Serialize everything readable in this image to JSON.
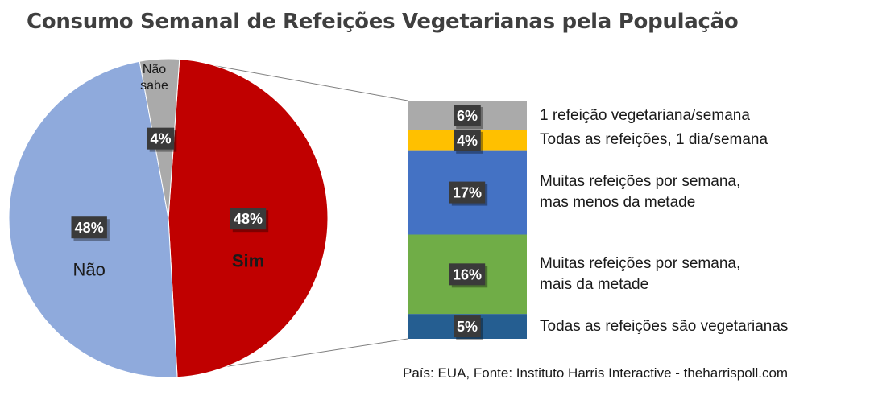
{
  "chart_data": {
    "type": "bar",
    "title": "Consumo Semanal de Refeições Vegetarianas pela População",
    "pie": {
      "slices": [
        {
          "label": "Sim",
          "value": 48,
          "value_label": "48%",
          "color": "#c00000"
        },
        {
          "label": "Não",
          "value": 48,
          "value_label": "48%",
          "color": "#8faadc"
        },
        {
          "label": "Não sabe",
          "value": 4,
          "value_label": "4%",
          "color": "#aaaaaa"
        }
      ]
    },
    "breakdown": {
      "segments": [
        {
          "label": "1 refeição vegetariana/semana",
          "value": 6,
          "value_label": "6%",
          "color": "#aaaaaa"
        },
        {
          "label": "Todas as refeições, 1 dia/semana",
          "value": 4,
          "value_label": "4%",
          "color": "#ffc000"
        },
        {
          "label": "Muitas refeições por semana, mas menos da metade",
          "label_lines": [
            "Muitas refeições por semana,",
            "mas menos da metade"
          ],
          "value": 17,
          "value_label": "17%",
          "color": "#4472c4"
        },
        {
          "label": "Muitas refeições por semana, mais da metade",
          "label_lines": [
            "Muitas refeições por semana,",
            "mais da metade"
          ],
          "value": 16,
          "value_label": "16%",
          "color": "#70ad47"
        },
        {
          "label": "Todas as refeições são vegetarianas",
          "value": 5,
          "value_label": "5%",
          "color": "#255e91"
        }
      ]
    }
  },
  "source": "País: EUA, Fonte: Instituto Harris Interactive - theharrispoll.com"
}
